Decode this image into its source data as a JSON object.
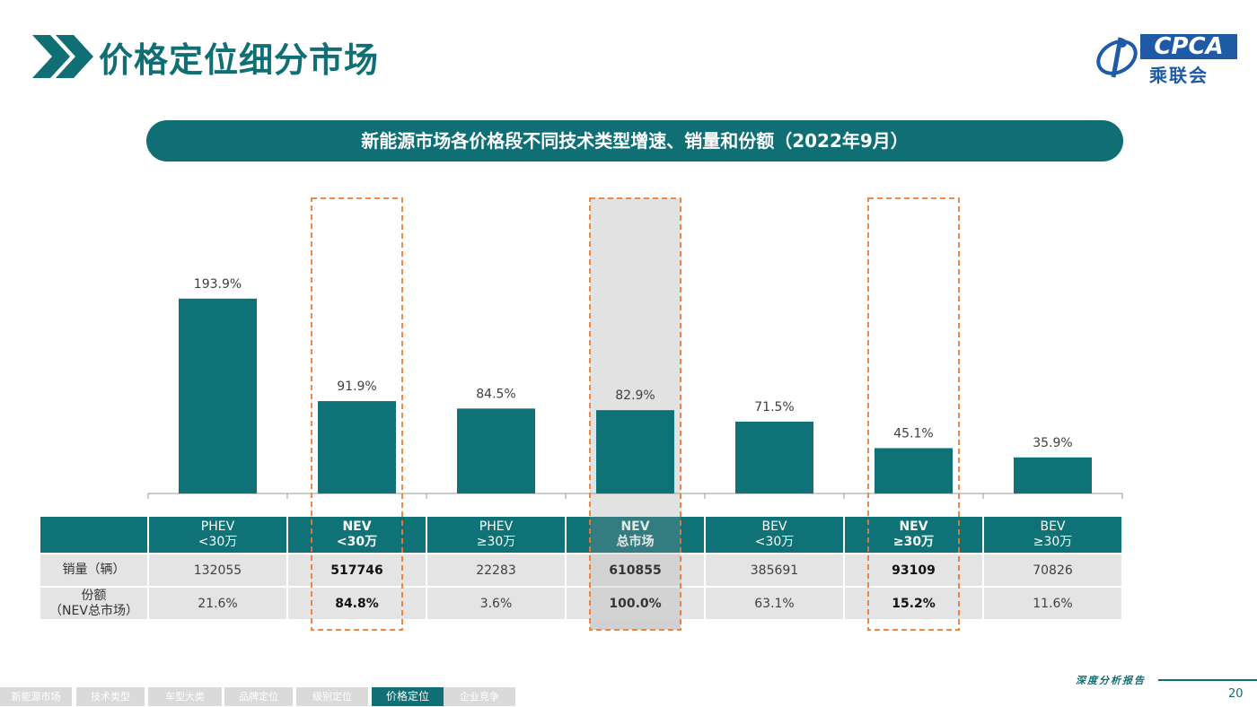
{
  "page": {
    "title": "价格定位细分市场",
    "subtitle": "新能源市场各价格段不同技术类型增速、销量和份额（2022年9月）",
    "logo_en": "CPCA",
    "logo_cn": "乘联会",
    "footer_tag": "深度分析报告",
    "page_number": "20"
  },
  "nav": {
    "items": [
      "新能源市场",
      "技术类型",
      "车型大类",
      "品牌定位",
      "级别定位",
      "价格定位",
      "企业竞争"
    ],
    "active_index": 5
  },
  "table": {
    "row_labels": [
      "销量（辆）",
      "份额\n（NEV总市场）"
    ],
    "columns": [
      {
        "header_top": "PHEV",
        "header_bottom": "<30万",
        "sales": "132055",
        "share": "21.6%",
        "highlight": false
      },
      {
        "header_top": "NEV",
        "header_bottom": "<30万",
        "sales": "517746",
        "share": "84.8%",
        "highlight": true
      },
      {
        "header_top": "PHEV",
        "header_bottom": "≥30万",
        "sales": "22283",
        "share": "3.6%",
        "highlight": false
      },
      {
        "header_top": "NEV",
        "header_bottom": "总市场",
        "sales": "610855",
        "share": "100.0%",
        "highlight": true
      },
      {
        "header_top": "BEV",
        "header_bottom": "<30万",
        "sales": "385691",
        "share": "63.1%",
        "highlight": false
      },
      {
        "header_top": "NEV",
        "header_bottom": "≥30万",
        "sales": "93109",
        "share": "15.2%",
        "highlight": true
      },
      {
        "header_top": "BEV",
        "header_bottom": "≥30万",
        "sales": "70826",
        "share": "11.6%",
        "highlight": false
      }
    ]
  },
  "chart_data": {
    "type": "bar",
    "title": "新能源市场各价格段不同技术类型增速、销量和份额（2022年9月）",
    "categories": [
      "PHEV <30万",
      "NEV <30万",
      "PHEV ≥30万",
      "NEV 总市场",
      "BEV <30万",
      "NEV ≥30万",
      "BEV ≥30万"
    ],
    "values": [
      193.9,
      91.9,
      84.5,
      82.9,
      71.5,
      45.1,
      35.9
    ],
    "value_labels": [
      "193.9%",
      "91.9%",
      "84.5%",
      "82.9%",
      "71.5%",
      "45.1%",
      "35.9%"
    ],
    "ylim": [
      0,
      225
    ],
    "grid": false,
    "legend": "none",
    "highlighted_categories": [
      "NEV <30万",
      "NEV 总市场",
      "NEV ≥30万"
    ],
    "bar_color": "#0f7276",
    "highlight_box_color": "#f07a30"
  }
}
